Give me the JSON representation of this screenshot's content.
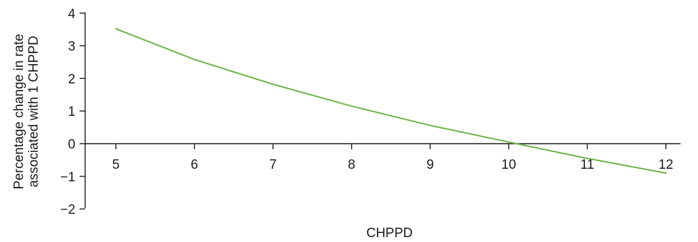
{
  "chart_data": {
    "type": "line",
    "xlabel": "CHPPD",
    "ylabel_lines": [
      "Percentage change in rate",
      "associated with 1 CHPPD"
    ],
    "xlim": [
      5,
      12
    ],
    "ylim": [
      -2,
      4
    ],
    "xticks": [
      5,
      6,
      7,
      8,
      9,
      10,
      11,
      12
    ],
    "yticks": [
      4,
      3,
      2,
      1,
      0,
      -1,
      -2
    ],
    "ytick_labels": [
      "4",
      "3",
      "2",
      "1",
      "0",
      "−1",
      "−2"
    ],
    "series": [
      {
        "color": "#6ab344",
        "x": [
          5,
          6,
          7,
          8,
          9,
          10,
          11,
          12
        ],
        "y": [
          3.52,
          2.58,
          1.82,
          1.15,
          0.56,
          0.05,
          -0.45,
          -0.9
        ]
      }
    ],
    "grid": false,
    "legend": "none"
  }
}
